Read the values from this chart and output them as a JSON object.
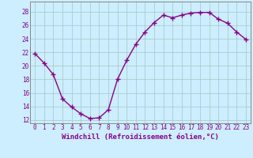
{
  "x": [
    0,
    1,
    2,
    3,
    4,
    5,
    6,
    7,
    8,
    9,
    10,
    11,
    12,
    13,
    14,
    15,
    16,
    17,
    18,
    19,
    20,
    21,
    22,
    23
  ],
  "y": [
    21.8,
    20.4,
    18.7,
    15.1,
    13.9,
    12.9,
    12.2,
    12.3,
    13.5,
    18.0,
    20.8,
    23.2,
    25.0,
    26.4,
    27.5,
    27.1,
    27.5,
    27.8,
    27.9,
    27.9,
    26.9,
    26.3,
    25.0,
    23.9
  ],
  "line_color": "#880088",
  "marker": "+",
  "marker_size": 4,
  "line_width": 1.0,
  "xlabel": "Windchill (Refroidissement éolien,°C)",
  "xlabel_fontsize": 6.5,
  "background_color": "#cceeff",
  "grid_color": "#aacccc",
  "yticks": [
    12,
    14,
    16,
    18,
    20,
    22,
    24,
    26,
    28
  ],
  "xticks": [
    0,
    1,
    2,
    3,
    4,
    5,
    6,
    7,
    8,
    9,
    10,
    11,
    12,
    13,
    14,
    15,
    16,
    17,
    18,
    19,
    20,
    21,
    22,
    23
  ],
  "ylim": [
    11.5,
    29.5
  ],
  "xlim": [
    -0.5,
    23.5
  ],
  "tick_fontsize": 5.5,
  "tick_color": "#880088",
  "spine_color": "#888888"
}
